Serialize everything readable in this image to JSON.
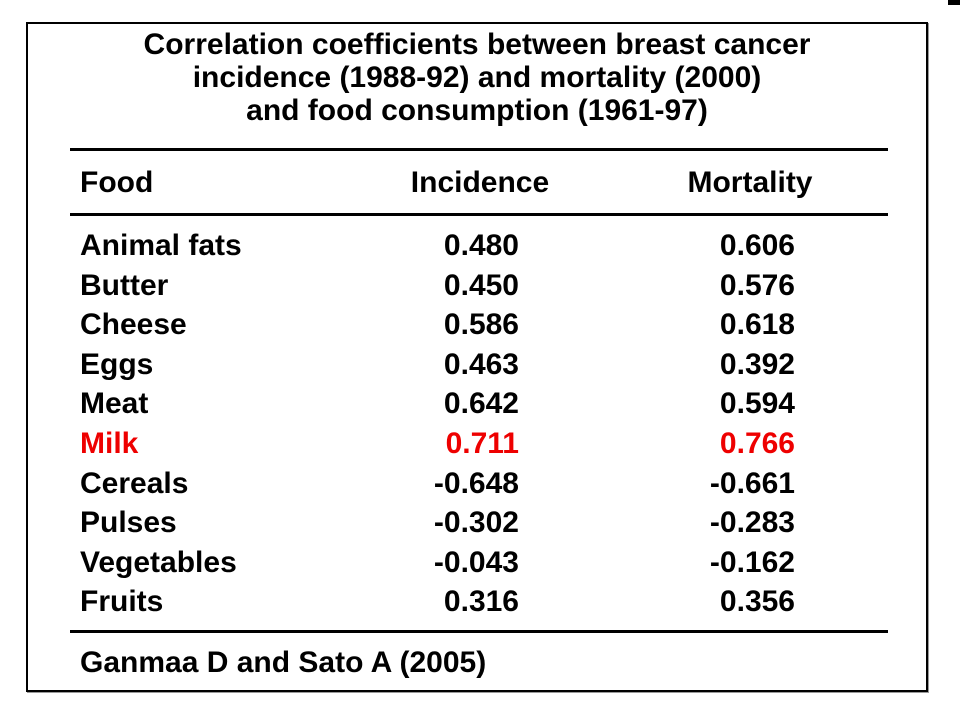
{
  "page": {
    "title_lines": [
      "Correlation coefficients between breast cancer",
      "incidence (1988-92) and mortality (2000)",
      "and food consumption (1961-97)"
    ]
  },
  "table": {
    "headers": {
      "food": "Food",
      "incidence": "Incidence",
      "mortality": "Mortality"
    },
    "rows": [
      {
        "food": "Animal fats",
        "incidence": "0.480",
        "mortality": "0.606"
      },
      {
        "food": "Butter",
        "incidence": "0.450",
        "mortality": "0.576"
      },
      {
        "food": "Cheese",
        "incidence": "0.586",
        "mortality": "0.618"
      },
      {
        "food": "Eggs",
        "incidence": "0.463",
        "mortality": "0.392"
      },
      {
        "food": "Meat",
        "incidence": "0.642",
        "mortality": "0.594"
      },
      {
        "food": "Milk",
        "incidence": "0.711",
        "mortality": "0.766"
      },
      {
        "food": "Cereals",
        "incidence": "-0.648",
        "mortality": "-0.661"
      },
      {
        "food": "Pulses",
        "incidence": "-0.302",
        "mortality": "-0.283"
      },
      {
        "food": "Vegetables",
        "incidence": "-0.043",
        "mortality": "-0.162"
      },
      {
        "food": "Fruits",
        "incidence": "0.316",
        "mortality": "0.356"
      }
    ],
    "highlighted_row": "Milk"
  },
  "footer": {
    "citation": "Ganmaa D and Sato A (2005)"
  },
  "colors": {
    "text": "#000000",
    "highlight": "#ee0000"
  },
  "chart_data": {
    "type": "table",
    "title": "Correlation coefficients between breast cancer incidence (1988-92) and mortality (2000) and food consumption (1961-97)",
    "columns": [
      "Food",
      "Incidence",
      "Mortality"
    ],
    "rows": [
      [
        "Animal fats",
        0.48,
        0.606
      ],
      [
        "Butter",
        0.45,
        0.576
      ],
      [
        "Cheese",
        0.586,
        0.618
      ],
      [
        "Eggs",
        0.463,
        0.392
      ],
      [
        "Meat",
        0.642,
        0.594
      ],
      [
        "Milk",
        0.711,
        0.766
      ],
      [
        "Cereals",
        -0.648,
        -0.661
      ],
      [
        "Pulses",
        -0.302,
        -0.283
      ],
      [
        "Vegetables",
        -0.043,
        -0.162
      ],
      [
        "Fruits",
        0.316,
        0.356
      ]
    ],
    "highlighted_row": "Milk",
    "source": "Ganmaa D and Sato A (2005)"
  }
}
